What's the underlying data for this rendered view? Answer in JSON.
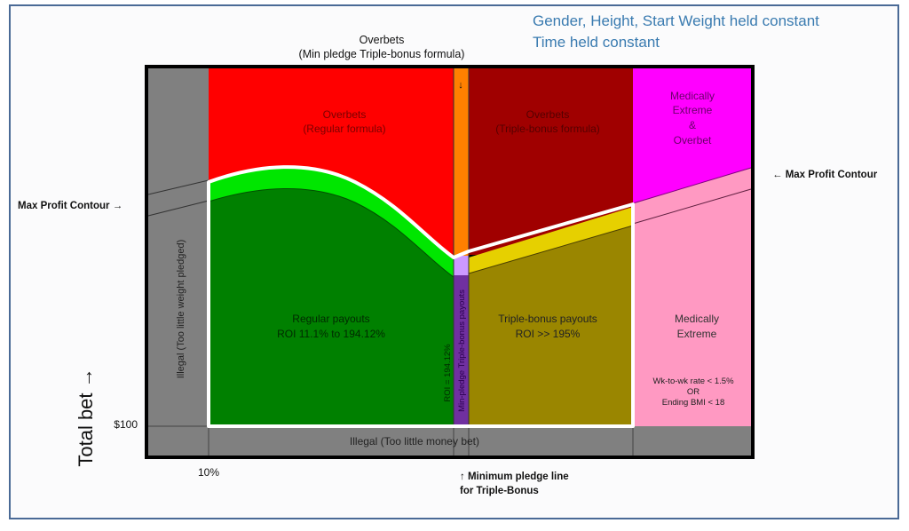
{
  "header_notes": [
    "Gender, Height, Start Weight held constant",
    "Time held constant"
  ],
  "top_label": {
    "line1": "Overbets",
    "line2": "(Min pledge Triple-bonus formula)"
  },
  "min_pledge_arrow": "↓",
  "regions": {
    "overbets_regular": {
      "line1": "Overbets",
      "line2": "(Regular formula)"
    },
    "overbets_triple": {
      "line1": "Overbets",
      "line2": "(Triple-bonus formula)"
    },
    "medically_extreme_overbet": {
      "line1": "Medically",
      "line2": "Extreme",
      "line3": "&",
      "line4": "Overbet"
    },
    "regular_payouts": {
      "line1": "Regular payouts",
      "line2": "ROI 11.1% to 194.12%"
    },
    "triple_bonus_payouts": {
      "line1": "Triple-bonus payouts",
      "line2": "ROI >> 195%"
    },
    "medically_extreme": {
      "line1": "Medically",
      "line2": "Extreme",
      "cond1": "Wk-to-wk rate < 1.5%",
      "cond2": "OR",
      "cond3": "Ending BMI < 18"
    },
    "illegal_weight": "Illegal (Too little weight pledged)",
    "illegal_money": "Illegal (Too little money bet)",
    "roi_line": "ROI = 194.12%",
    "min_pledge_payouts": "Min-pledge Triple-bonus payouts"
  },
  "annotations": {
    "max_profit_left": "Max Profit Contour →",
    "max_profit_right": "← Max Profit Contour",
    "min_pledge_line1": "↑ Minimum pledge line",
    "min_pledge_line2": "for Triple-Bonus"
  },
  "axes": {
    "y_label": "Total bet →",
    "y_tick": "$100",
    "x_tick": "10%"
  },
  "colors": {
    "illegal": "#808080",
    "overbet_regular": "#ff0000",
    "overbet_triple": "#a00000",
    "min_pledge_overbet": "#ff8000",
    "medically_extreme_overbet": "#ff00ff",
    "medically_extreme": "#ff99c2",
    "regular_payouts": "#008000",
    "max_profit_regular": "#00e600",
    "triple_payouts": "#9a8600",
    "max_profit_triple": "#e6d000",
    "min_pledge_payouts": "#7030a0",
    "min_pledge_max": "#cc99ff",
    "note_text": "#3a7bb0"
  }
}
